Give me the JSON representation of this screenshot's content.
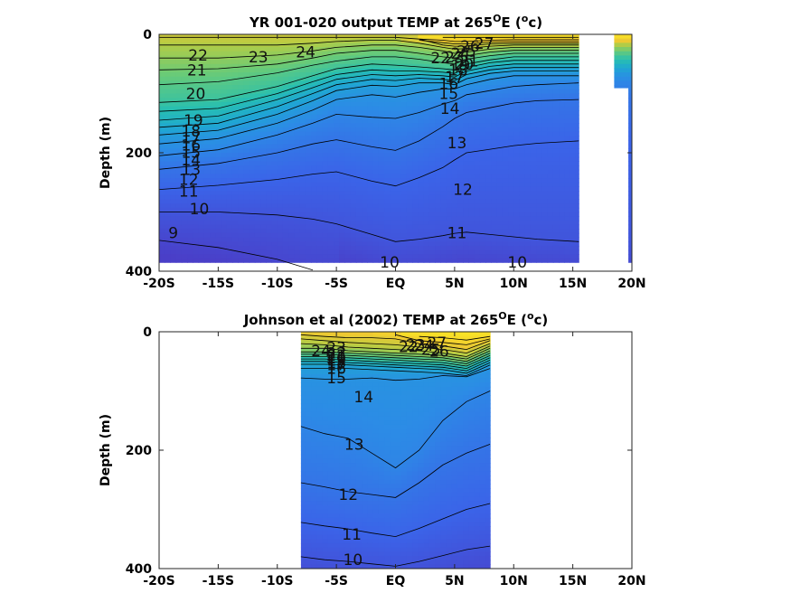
{
  "colors": {
    "palette": [
      "#4a3fc8",
      "#3b63e8",
      "#2c8be6",
      "#1fa7d2",
      "#28bfb0",
      "#6acb77",
      "#b4cc45",
      "#f0c931",
      "#f9e525"
    ],
    "temp_min": 8.5,
    "temp_max": 28
  },
  "chart_data": [
    {
      "type": "heatmap",
      "name": "model",
      "title": "YR 001-020 output TEMP at 265",
      "title_sup_deg": "O",
      "title_mid": "E (",
      "title_sup_c": "o",
      "title_end": "c)",
      "ylabel": "Depth (m)",
      "xlim": [
        -20,
        20
      ],
      "ylim": [
        0,
        400
      ],
      "y_reversed": true,
      "x_ticks": [
        -20,
        -15,
        -10,
        -5,
        0,
        5,
        10,
        15,
        20
      ],
      "x_tick_labels": [
        "-20S",
        "-15S",
        "-10S",
        "-5S",
        "EQ",
        "5N",
        "10N",
        "15N",
        "20N"
      ],
      "y_ticks": [
        0,
        200,
        400
      ],
      "y_tick_labels": [
        "0",
        "200",
        "400"
      ],
      "data_coverage": [
        {
          "x0": -20,
          "x1": 15.5,
          "ybot": 385
        },
        {
          "x0": 18.5,
          "x1": 19.7,
          "ybot": 90
        },
        {
          "x0": 19.7,
          "x1": 20,
          "ybot": 385
        }
      ],
      "contour_levels": [
        9,
        10,
        11,
        12,
        13,
        14,
        15,
        16,
        17,
        18,
        19,
        20,
        21,
        22,
        23,
        24,
        25,
        26,
        27
      ],
      "isotherm_depth_profiles": {
        "x": [
          -20,
          -15,
          -10,
          -7,
          -5,
          -2,
          0,
          2,
          4,
          5,
          6,
          8,
          10,
          12,
          15.5
        ],
        "levels": {
          "27": [
            null,
            null,
            null,
            null,
            null,
            null,
            null,
            null,
            5,
            5,
            5,
            5,
            5,
            5,
            5
          ],
          "26": [
            null,
            null,
            null,
            null,
            null,
            null,
            null,
            8,
            10,
            12,
            12,
            10,
            9,
            9,
            9
          ],
          "25": [
            null,
            null,
            null,
            null,
            null,
            null,
            null,
            10,
            14,
            16,
            16,
            13,
            12,
            12,
            12
          ],
          "24": [
            5,
            5,
            5,
            5,
            5,
            5,
            5,
            8,
            18,
            20,
            20,
            16,
            15,
            15,
            15
          ],
          "23": [
            18,
            18,
            18,
            15,
            12,
            10,
            10,
            15,
            22,
            25,
            24,
            20,
            18,
            18,
            18
          ],
          "22": [
            40,
            40,
            35,
            28,
            22,
            18,
            18,
            22,
            28,
            32,
            30,
            25,
            22,
            22,
            22
          ],
          "21": [
            60,
            58,
            50,
            40,
            32,
            27,
            27,
            32,
            38,
            40,
            36,
            30,
            27,
            27,
            27
          ],
          "20": [
            85,
            80,
            65,
            52,
            45,
            38,
            38,
            42,
            48,
            50,
            42,
            36,
            32,
            32,
            32
          ],
          "19": [
            115,
            110,
            88,
            70,
            58,
            50,
            52,
            55,
            58,
            60,
            50,
            43,
            38,
            38,
            38
          ],
          "18": [
            130,
            125,
            100,
            80,
            68,
            60,
            62,
            62,
            64,
            66,
            56,
            48,
            44,
            44,
            44
          ],
          "17": [
            145,
            138,
            110,
            90,
            76,
            68,
            70,
            68,
            70,
            72,
            62,
            54,
            50,
            50,
            50
          ],
          "16": [
            157,
            150,
            122,
            100,
            85,
            76,
            78,
            74,
            76,
            78,
            68,
            60,
            56,
            56,
            56
          ],
          "15": [
            170,
            162,
            135,
            112,
            95,
            86,
            88,
            82,
            82,
            85,
            75,
            66,
            62,
            62,
            62
          ],
          "14": [
            185,
            176,
            150,
            128,
            110,
            102,
            106,
            98,
            92,
            92,
            85,
            76,
            70,
            70,
            70
          ],
          "13": [
            205,
            195,
            170,
            150,
            135,
            140,
            142,
            132,
            118,
            112,
            102,
            95,
            88,
            85,
            82
          ],
          "12": [
            228,
            218,
            200,
            185,
            178,
            190,
            196,
            180,
            156,
            142,
            132,
            124,
            116,
            112,
            110
          ],
          "11": [
            262,
            255,
            245,
            236,
            232,
            248,
            256,
            242,
            225,
            212,
            200,
            194,
            188,
            184,
            180
          ],
          "10": [
            300,
            300,
            305,
            312,
            320,
            338,
            350,
            346,
            340,
            336,
            334,
            338,
            342,
            346,
            350
          ],
          "9": [
            348,
            360,
            380,
            398,
            null,
            null,
            null,
            null,
            null,
            null,
            null,
            null,
            null,
            null,
            null
          ]
        }
      },
      "contour_labels": [
        {
          "text": "9",
          "x": -18.8,
          "y": 335
        },
        {
          "text": "10",
          "x": -16.6,
          "y": 295
        },
        {
          "text": "11",
          "x": -17.5,
          "y": 265
        },
        {
          "text": "12",
          "x": -17.5,
          "y": 245
        },
        {
          "text": "13",
          "x": -17.3,
          "y": 228
        },
        {
          "text": "14",
          "x": -17.3,
          "y": 212
        },
        {
          "text": "15",
          "x": -17.3,
          "y": 199
        },
        {
          "text": "16",
          "x": -17.3,
          "y": 187
        },
        {
          "text": "17",
          "x": -17.3,
          "y": 175
        },
        {
          "text": "18",
          "x": -17.3,
          "y": 163
        },
        {
          "text": "19",
          "x": -17.1,
          "y": 145
        },
        {
          "text": "20",
          "x": -16.9,
          "y": 100
        },
        {
          "text": "21",
          "x": -16.8,
          "y": 60
        },
        {
          "text": "22",
          "x": -16.7,
          "y": 35
        },
        {
          "text": "23",
          "x": -11.6,
          "y": 38
        },
        {
          "text": "24",
          "x": -7.6,
          "y": 30
        },
        {
          "text": "10",
          "x": -0.5,
          "y": 385
        },
        {
          "text": "11",
          "x": 5.2,
          "y": 335
        },
        {
          "text": "12",
          "x": 5.7,
          "y": 262
        },
        {
          "text": "13",
          "x": 5.2,
          "y": 183
        },
        {
          "text": "14",
          "x": 4.6,
          "y": 125
        },
        {
          "text": "15",
          "x": 4.5,
          "y": 100
        },
        {
          "text": "16",
          "x": 4.5,
          "y": 83
        },
        {
          "text": "17",
          "x": 5.0,
          "y": 72
        },
        {
          "text": "18",
          "x": 5.3,
          "y": 60
        },
        {
          "text": "19",
          "x": 5.5,
          "y": 52
        },
        {
          "text": "20",
          "x": 5.8,
          "y": 50
        },
        {
          "text": "21",
          "x": 6.2,
          "y": 45
        },
        {
          "text": "22",
          "x": 3.8,
          "y": 40
        },
        {
          "text": "23",
          "x": 5.0,
          "y": 38
        },
        {
          "text": "24",
          "x": 5.5,
          "y": 32
        },
        {
          "text": "25",
          "x": 6.0,
          "y": 28
        },
        {
          "text": "26",
          "x": 6.3,
          "y": 20
        },
        {
          "text": "27",
          "x": 7.5,
          "y": 15
        },
        {
          "text": "10",
          "x": 10.3,
          "y": 385
        }
      ]
    },
    {
      "type": "heatmap",
      "name": "observations",
      "title": "Johnson et al (2002) TEMP at 265",
      "title_sup_deg": "O",
      "title_mid": "E (",
      "title_sup_c": "o",
      "title_end": "c)",
      "ylabel": "Depth (m)",
      "xlim": [
        -20,
        20
      ],
      "ylim": [
        0,
        400
      ],
      "y_reversed": true,
      "x_ticks": [
        -20,
        -15,
        -10,
        -5,
        0,
        5,
        10,
        15,
        20
      ],
      "x_tick_labels": [
        "-20S",
        "-15S",
        "-10S",
        "-5S",
        "EQ",
        "5N",
        "10N",
        "15N",
        "20N"
      ],
      "y_ticks": [
        0,
        200,
        400
      ],
      "y_tick_labels": [
        "0",
        "200",
        "400"
      ],
      "data_coverage": [
        {
          "x0": -8,
          "x1": 8,
          "ybot": 400
        }
      ],
      "contour_levels": [
        10,
        11,
        12,
        13,
        14,
        15,
        16,
        17,
        18,
        19,
        20,
        21,
        22,
        23,
        24,
        25,
        26,
        27
      ],
      "isotherm_depth_profiles": {
        "x": [
          -8,
          -6,
          -4,
          -2,
          0,
          2,
          4,
          6,
          8
        ],
        "levels": {
          "27": [
            null,
            null,
            null,
            null,
            null,
            8,
            10,
            14,
            8
          ],
          "26": [
            null,
            null,
            null,
            null,
            5,
            15,
            18,
            22,
            12
          ],
          "25": [
            5,
            8,
            10,
            10,
            12,
            20,
            24,
            30,
            15
          ],
          "24": [
            12,
            15,
            18,
            20,
            22,
            26,
            30,
            36,
            20
          ],
          "23": [
            20,
            22,
            26,
            28,
            30,
            32,
            36,
            42,
            24
          ],
          "22": [
            28,
            28,
            32,
            34,
            36,
            38,
            40,
            46,
            28
          ],
          "21": [
            34,
            34,
            36,
            38,
            40,
            42,
            44,
            50,
            32
          ],
          "20": [
            38,
            38,
            40,
            42,
            44,
            46,
            48,
            54,
            36
          ],
          "19": [
            42,
            42,
            44,
            46,
            48,
            50,
            52,
            58,
            40
          ],
          "18": [
            46,
            46,
            48,
            50,
            52,
            54,
            56,
            62,
            44
          ],
          "17": [
            50,
            50,
            52,
            54,
            56,
            58,
            60,
            66,
            48
          ],
          "16": [
            55,
            55,
            56,
            58,
            60,
            62,
            64,
            70,
            52
          ],
          "15": [
            62,
            62,
            62,
            64,
            66,
            68,
            70,
            74,
            56
          ],
          "14": [
            78,
            80,
            80,
            78,
            82,
            80,
            74,
            76,
            62
          ],
          "13": [
            160,
            172,
            180,
            205,
            230,
            200,
            150,
            118,
            100
          ],
          "12": [
            255,
            262,
            270,
            275,
            280,
            255,
            225,
            205,
            190
          ],
          "11": [
            322,
            328,
            333,
            340,
            346,
            332,
            316,
            300,
            290
          ],
          "10": [
            380,
            385,
            388,
            392,
            396,
            388,
            378,
            368,
            362
          ]
        }
      },
      "contour_labels": [
        {
          "text": "24",
          "x": -6.3,
          "y": 32
        },
        {
          "text": "23",
          "x": -5.0,
          "y": 27
        },
        {
          "text": "22",
          "x": -5.0,
          "y": 36
        },
        {
          "text": "21",
          "x": -5.0,
          "y": 40
        },
        {
          "text": "20",
          "x": -5.0,
          "y": 44
        },
        {
          "text": "19",
          "x": -5.0,
          "y": 48
        },
        {
          "text": "18",
          "x": -5.0,
          "y": 52
        },
        {
          "text": "17",
          "x": -5.0,
          "y": 56
        },
        {
          "text": "16",
          "x": -5.0,
          "y": 62
        },
        {
          "text": "15",
          "x": -5.0,
          "y": 78
        },
        {
          "text": "14",
          "x": -2.7,
          "y": 110
        },
        {
          "text": "13",
          "x": -3.5,
          "y": 190
        },
        {
          "text": "12",
          "x": -4.0,
          "y": 275
        },
        {
          "text": "11",
          "x": -3.7,
          "y": 342
        },
        {
          "text": "10",
          "x": -3.6,
          "y": 385
        },
        {
          "text": "22",
          "x": 1.1,
          "y": 25
        },
        {
          "text": "23",
          "x": 1.7,
          "y": 22
        },
        {
          "text": "24",
          "x": 2.4,
          "y": 23
        },
        {
          "text": "25",
          "x": 3.0,
          "y": 30
        },
        {
          "text": "26",
          "x": 3.7,
          "y": 33
        },
        {
          "text": "27",
          "x": 3.5,
          "y": 18
        }
      ]
    }
  ]
}
